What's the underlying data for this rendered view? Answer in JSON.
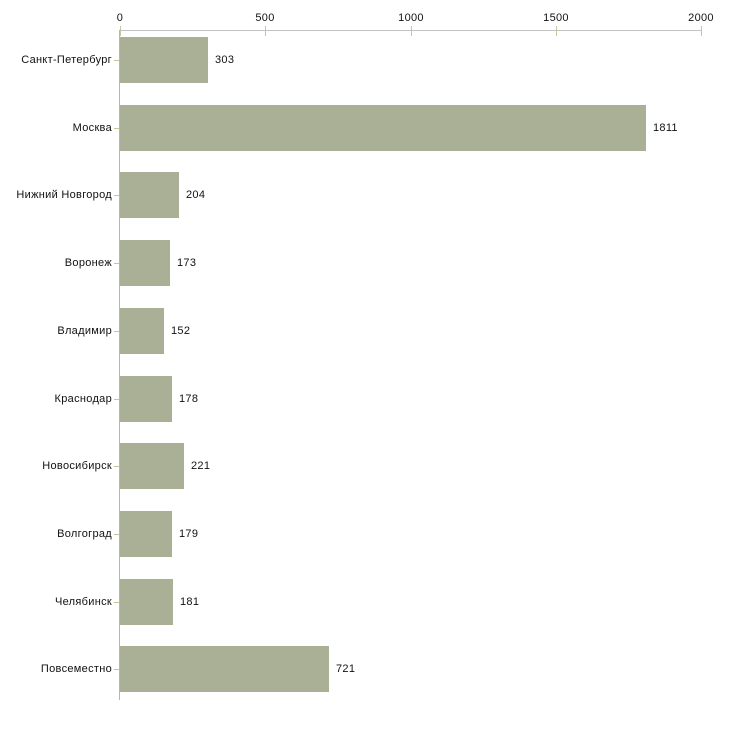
{
  "chart_data": {
    "type": "bar",
    "orientation": "horizontal",
    "title": "",
    "xlabel": "",
    "ylabel": "",
    "categories": [
      "Санкт-Петербург",
      "Москва",
      "Нижний Новгород",
      "Воронеж",
      "Владимир",
      "Краснодар",
      "Новосибирск",
      "Волгоград",
      "Челябинск",
      "Повсеместно"
    ],
    "values": [
      303,
      1811,
      204,
      173,
      152,
      178,
      221,
      179,
      181,
      721
    ],
    "value_labels": [
      "303",
      "1811",
      "204",
      "173",
      "152",
      "178",
      "221",
      "179",
      "181",
      "721"
    ],
    "xlim": [
      0,
      2000
    ],
    "x_ticks": [
      0,
      500,
      1000,
      1500,
      2000
    ],
    "x_tick_labels": [
      "0",
      "500",
      "1000",
      "1500",
      "2000"
    ],
    "grid": false,
    "legend": "none",
    "colors": {
      "bar_fill": "#a9b095",
      "x_axis_line": "#c3c3c3",
      "y_axis_line": "#b5b5b5",
      "tick_mark": "#c5c79b",
      "text": "#111111",
      "background": "#ffffff"
    }
  }
}
